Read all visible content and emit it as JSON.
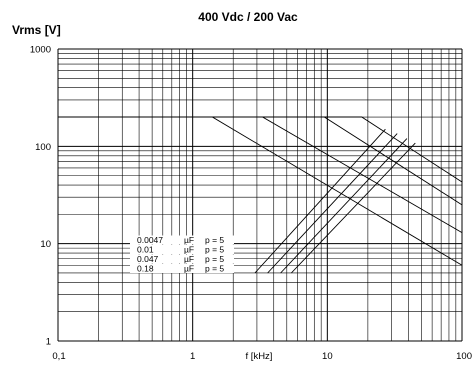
{
  "chart_data": {
    "type": "line",
    "title": "400 Vdc / 200 Vac",
    "ylabel": "Vrms [V]",
    "xlabel": "f [kHz]",
    "x_scale": "log",
    "y_scale": "log",
    "xlim": [
      0.1,
      100
    ],
    "ylim": [
      1,
      1000
    ],
    "grid": true,
    "x_tick_labels": [
      "0,1",
      "1",
      "10",
      "100"
    ],
    "y_tick_labels": [
      "1",
      "10",
      "100",
      "1000"
    ],
    "series": [
      {
        "name": "0.0047 µF p = 5",
        "x": [
          0.1,
          18,
          100
        ],
        "y": [
          200,
          200,
          43
        ]
      },
      {
        "name": "0.01 µF p = 5",
        "x": [
          0.1,
          9.5,
          100
        ],
        "y": [
          200,
          200,
          25
        ]
      },
      {
        "name": "0.047 µF p = 5",
        "x": [
          0.1,
          3.3,
          100
        ],
        "y": [
          200,
          200,
          13
        ]
      },
      {
        "name": "0.18 µF p = 5",
        "x": [
          0.1,
          1.4,
          100
        ],
        "y": [
          200,
          200,
          6
        ]
      }
    ],
    "rising_curves": [
      {
        "x": [
          2.9,
          27
        ],
        "y": [
          5,
          150
        ]
      },
      {
        "x": [
          3.6,
          33
        ],
        "y": [
          5,
          135
        ]
      },
      {
        "x": [
          4.5,
          39
        ],
        "y": [
          5,
          120
        ]
      },
      {
        "x": [
          5.4,
          45
        ],
        "y": [
          5,
          108
        ]
      }
    ],
    "annotations": [
      {
        "cap": "0.0047",
        "unit": "µF",
        "p": "p = 5"
      },
      {
        "cap": "0.01",
        "unit": "µF",
        "p": "p = 5"
      },
      {
        "cap": "0.047",
        "unit": "µF",
        "p": "p = 5"
      },
      {
        "cap": "0.18",
        "unit": "µF",
        "p": "p = 5"
      }
    ]
  }
}
